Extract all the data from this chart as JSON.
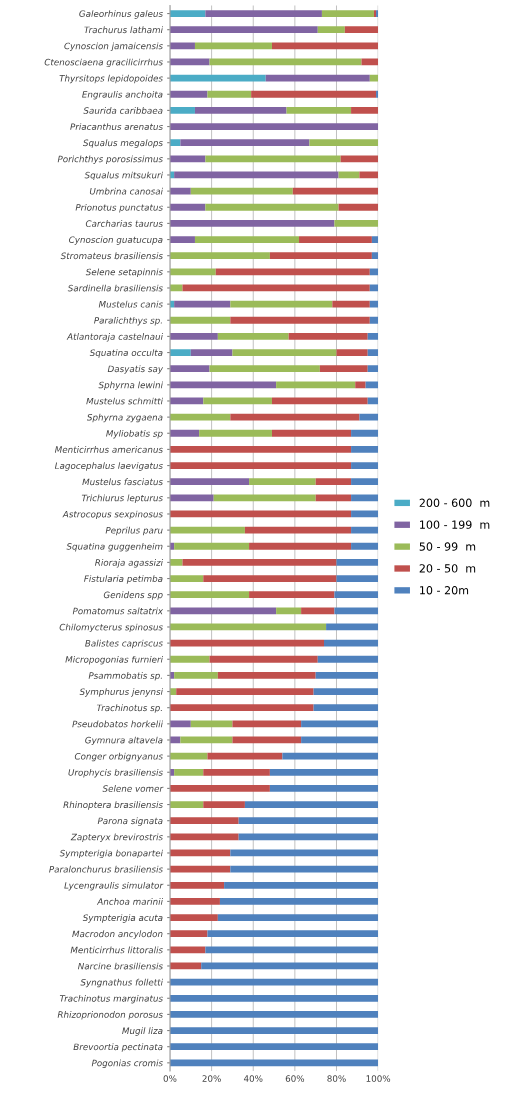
{
  "chart_data": {
    "type": "bar",
    "orientation": "horizontal",
    "stacked": true,
    "categories": [
      "Galeorhinus galeus",
      "Trachurus lathami",
      "Cynoscion jamaicensis",
      "Ctenosciaena gracilicirrhus",
      "Thyrsitops lepidopoides",
      "Engraulis anchoita",
      "Saurida caribbaea",
      "Priacanthus arenatus",
      "Squalus megalops",
      "Porichthys porosissimus",
      "Squalus mitsukuri",
      "Umbrina canosai",
      "Prionotus punctatus",
      "Carcharias taurus",
      "Cynoscion guatucupa",
      "Stromateus brasiliensis",
      "Selene setapinnis",
      "Sardinella brasiliensis",
      "Mustelus canis",
      "Paralichthys sp.",
      "Atlantoraja castelnaui",
      "Squatina occulta",
      "Dasyatis say",
      "Sphyrna lewini",
      "Mustelus schmitti",
      "Sphyrna zygaena",
      "Myliobatis sp",
      "Menticirrhus americanus",
      "Lagocephalus laevigatus",
      "Mustelus fasciatus",
      "Trichiurus lepturus",
      "Astrocopus sexpinosus",
      "Peprilus paru",
      "Squatina guggenheim",
      "Rioraja agassizi",
      "Fistularia petimba",
      "Genidens spp",
      "Pomatomus saltatrix",
      "Chilomycterus spinosus",
      "Balistes capriscus",
      "Micropogonias furnieri",
      "Psammobatis sp.",
      "Symphurus jenynsi",
      "Trachinotus sp.",
      "Pseudobatos horkelii",
      "Gymnura altavela",
      "Conger orbignyanus",
      "Urophycis brasiliensis",
      "Selene vomer",
      "Rhinoptera brasiliensis",
      "Parona signata",
      "Zapteryx brevirostris",
      "Sympterigia bonapartei",
      "Paralonchurus brasiliensis",
      "Lycengraulis simulator",
      "Anchoa marinii",
      "Sympterigia acuta",
      "Macrodon ancylodon",
      "Menticirrhus littoralis",
      "Narcine brasiliensis",
      "Syngnathus folletti",
      "Trachinotus marginatus",
      "Rhizoprionodon porosus",
      "Mugil liza",
      "Brevoortia pectinata",
      "Pogonias cromis"
    ],
    "series": [
      {
        "name": "200 - 600  m",
        "color": "#4bacc6",
        "values": [
          17,
          0,
          0,
          0,
          46,
          0,
          12,
          0,
          5,
          0,
          2,
          0,
          0,
          0,
          0,
          0,
          0,
          0,
          2,
          0,
          0,
          10,
          0,
          0,
          0,
          0,
          0,
          0,
          0,
          0,
          0,
          0,
          0,
          0,
          0,
          0,
          0,
          0,
          0,
          0,
          0,
          0,
          0,
          0,
          0,
          0,
          0,
          0,
          0,
          0,
          0,
          0,
          0,
          0,
          0,
          0,
          0,
          0,
          0,
          0,
          0,
          0,
          0,
          0,
          0,
          0
        ]
      },
      {
        "name": "100 - 199  m",
        "color": "#8064a2",
        "values": [
          56,
          71,
          12,
          19,
          50,
          18,
          44,
          100,
          62,
          17,
          79,
          10,
          17,
          79,
          12,
          0,
          0,
          0,
          27,
          0,
          23,
          20,
          19,
          51,
          16,
          0,
          14,
          0,
          0,
          38,
          21,
          0,
          0,
          2,
          0,
          0,
          0,
          51,
          0,
          0,
          0,
          2,
          0,
          0,
          10,
          5,
          0,
          2,
          0,
          0,
          0,
          0,
          0,
          0,
          0,
          0,
          0,
          0,
          0,
          0,
          0,
          0,
          0,
          0,
          0,
          0
        ]
      },
      {
        "name": "50 - 99  m",
        "color": "#9bbb59",
        "values": [
          25,
          13,
          37,
          73,
          4,
          21,
          31,
          0,
          33,
          65,
          10,
          49,
          64,
          21,
          50,
          48,
          22,
          6,
          49,
          29,
          34,
          50,
          53,
          38,
          33,
          29,
          35,
          0,
          0,
          32,
          49,
          0,
          36,
          36,
          6,
          16,
          38,
          12,
          75,
          0,
          19,
          21,
          3,
          0,
          20,
          25,
          18,
          14,
          0,
          16,
          0,
          0,
          0,
          0,
          0,
          0,
          0,
          0,
          0,
          0,
          0,
          0,
          0,
          0,
          0,
          0
        ]
      },
      {
        "name": "20 - 50  m",
        "color": "#c0504d",
        "values": [
          1,
          16,
          51,
          8,
          0,
          60,
          13,
          0,
          0,
          18,
          9,
          41,
          19,
          0,
          35,
          49,
          74,
          90,
          18,
          67,
          38,
          15,
          23,
          5,
          46,
          62,
          38,
          87,
          87,
          17,
          17,
          87,
          51,
          49,
          74,
          64,
          41,
          16,
          0,
          74,
          52,
          47,
          66,
          69,
          33,
          33,
          36,
          32,
          48,
          20,
          33,
          33,
          29,
          29,
          26,
          24,
          23,
          18,
          17,
          15,
          0,
          0,
          0,
          0,
          0,
          0
        ]
      },
      {
        "name": "10 - 20m",
        "color": "#4f81bd",
        "values": [
          1,
          0,
          0,
          0,
          0,
          1,
          0,
          0,
          0,
          0,
          0,
          0,
          0,
          0,
          3,
          3,
          4,
          4,
          4,
          4,
          5,
          5,
          5,
          6,
          5,
          9,
          13,
          13,
          13,
          13,
          13,
          13,
          13,
          13,
          20,
          20,
          21,
          21,
          25,
          26,
          29,
          30,
          31,
          31,
          37,
          37,
          46,
          52,
          52,
          64,
          67,
          67,
          71,
          71,
          74,
          76,
          77,
          82,
          83,
          85,
          100,
          100,
          100,
          100,
          100,
          100
        ]
      }
    ],
    "xlim": [
      0,
      100
    ],
    "xticks": [
      {
        "value": 0,
        "label": "0%"
      },
      {
        "value": 20,
        "label": "20%"
      },
      {
        "value": 40,
        "label": "40%"
      },
      {
        "value": 60,
        "label": "60%"
      },
      {
        "value": 80,
        "label": "80%"
      },
      {
        "value": 100,
        "label": "100%"
      }
    ],
    "grid": "x",
    "legend": "right"
  }
}
